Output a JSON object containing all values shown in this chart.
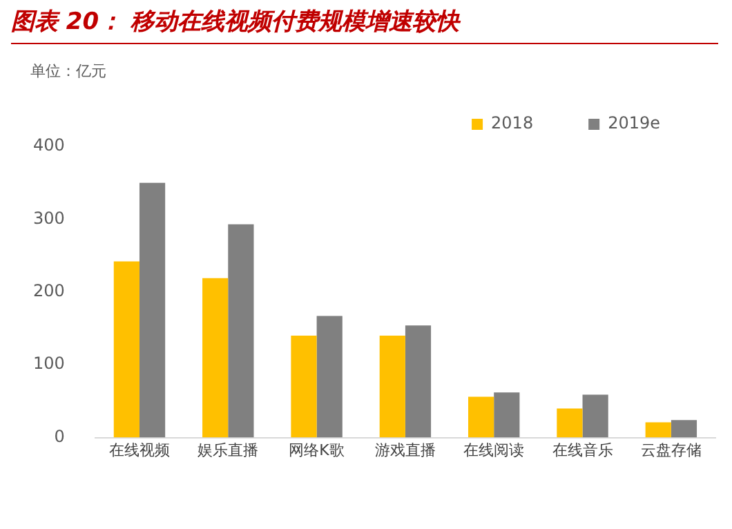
{
  "chart_data": {
    "type": "bar",
    "title": "图表 20：  移动在线视频付费规模增速较快",
    "ylabel": "单位：亿元",
    "categories": [
      "在线视频",
      "娱乐直播",
      "网络K歌",
      "游戏直播",
      "在线阅读",
      "在线音乐",
      "云盘存储"
    ],
    "series": [
      {
        "name": "2018",
        "color": "#ffc000",
        "values": [
          242,
          219,
          140,
          140,
          56,
          40,
          21
        ]
      },
      {
        "name": "2019e",
        "color": "#808080",
        "values": [
          350,
          293,
          167,
          154,
          62,
          59,
          24
        ]
      }
    ],
    "ylim": [
      0,
      400
    ],
    "yticks": [
      0,
      100,
      200,
      300,
      400
    ],
    "grid": false,
    "legend": "top right"
  }
}
